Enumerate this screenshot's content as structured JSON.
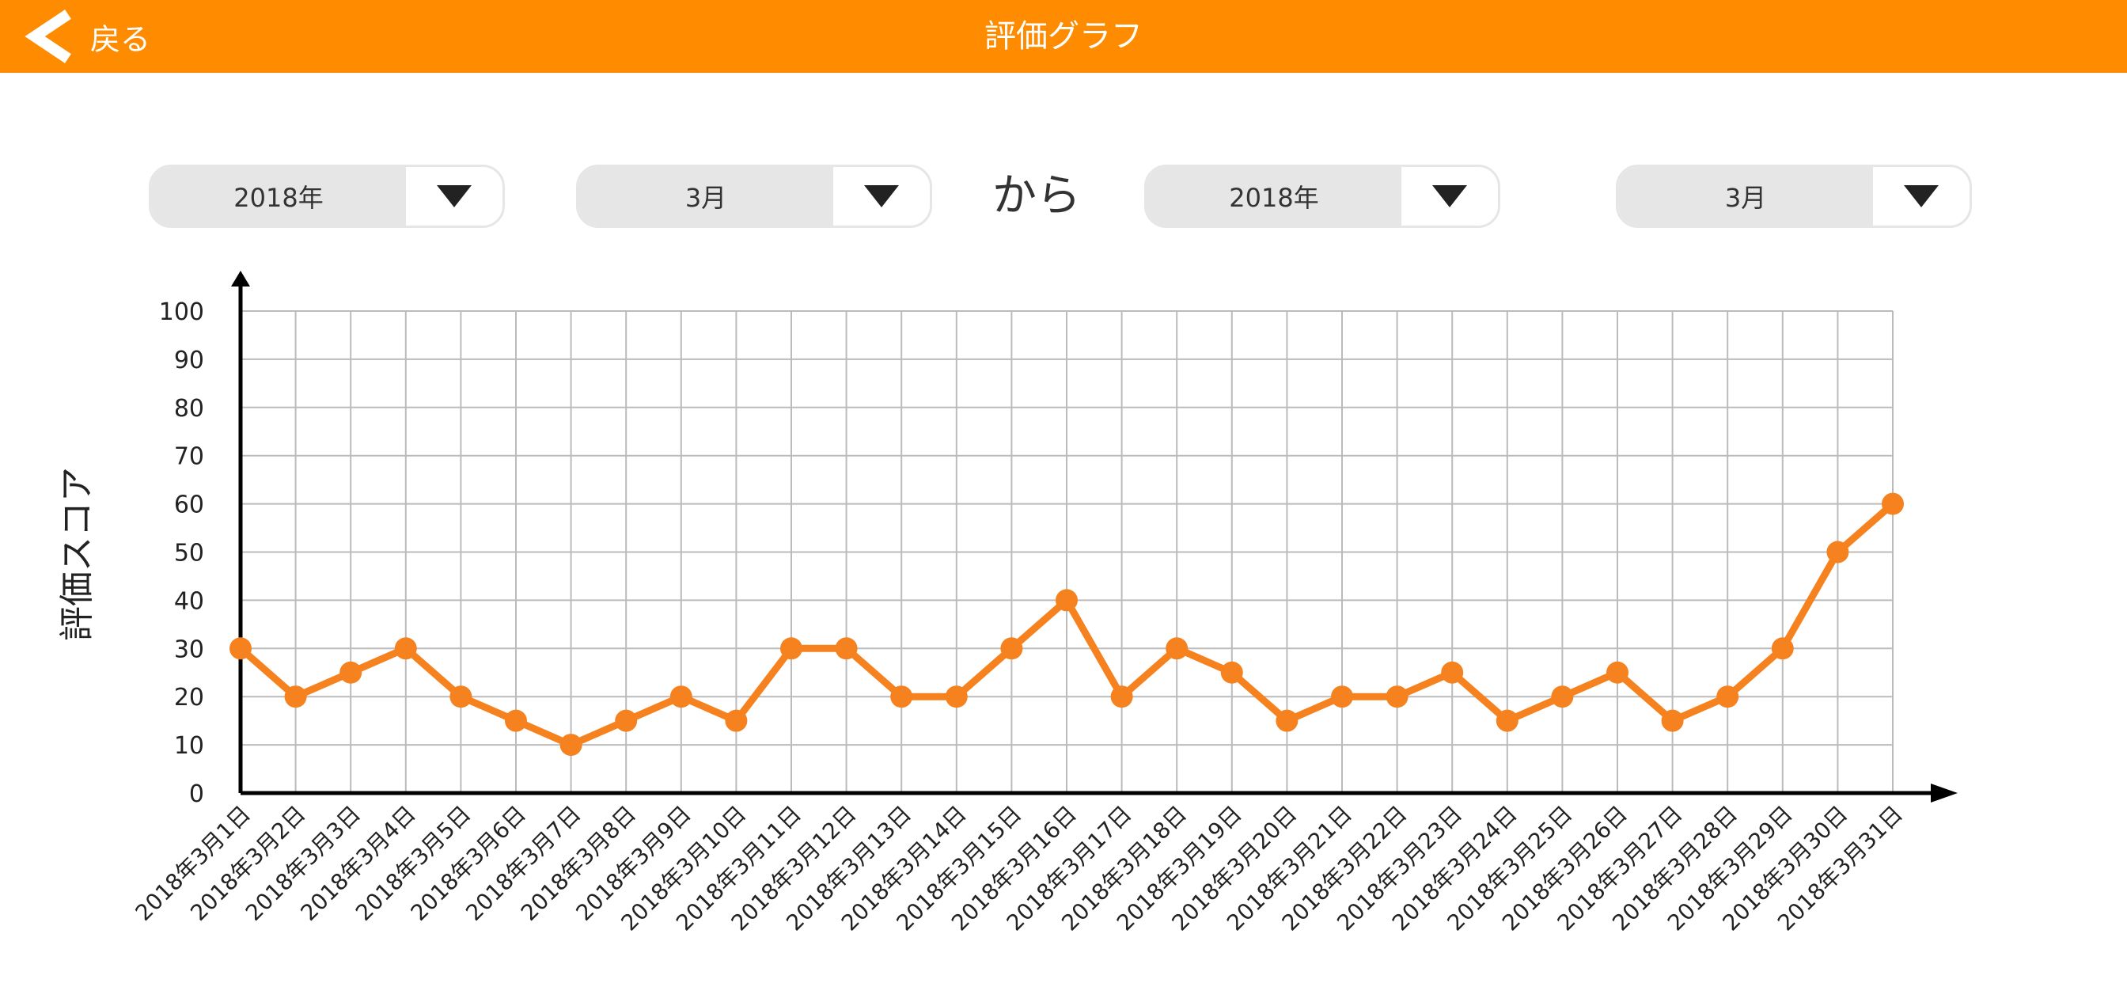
{
  "header": {
    "back_label": "戻る",
    "title": "評価グラフ"
  },
  "filters": {
    "from_year": "2018年",
    "from_month": "3月",
    "connector": "から",
    "to_year": "2018年",
    "to_month": "3月"
  },
  "colors": {
    "header_bg": "#ff8c00",
    "line": "#f5821f",
    "grid": "#bbbbbb"
  },
  "icons": {
    "back": "chevron-left-icon",
    "dropdown": "triangle-down-icon"
  },
  "chart_data": {
    "type": "line",
    "ylabel": "評価スコア",
    "ylim": [
      0,
      100
    ],
    "yticks": [
      "0",
      "10",
      "20",
      "30",
      "40",
      "50",
      "60",
      "70",
      "80",
      "90",
      "100"
    ],
    "grid": true,
    "categories": [
      "2018年3月1日",
      "2018年3月2日",
      "2018年3月3日",
      "2018年3月4日",
      "2018年3月5日",
      "2018年3月6日",
      "2018年3月7日",
      "2018年3月8日",
      "2018年3月9日",
      "2018年3月10日",
      "2018年3月11日",
      "2018年3月12日",
      "2018年3月13日",
      "2018年3月14日",
      "2018年3月15日",
      "2018年3月16日",
      "2018年3月17日",
      "2018年3月18日",
      "2018年3月19日",
      "2018年3月20日",
      "2018年3月21日",
      "2018年3月22日",
      "2018年3月23日",
      "2018年3月24日",
      "2018年3月25日",
      "2018年3月26日",
      "2018年3月27日",
      "2018年3月28日",
      "2018年3月29日",
      "2018年3月30日",
      "2018年3月31日"
    ],
    "values": [
      30,
      20,
      25,
      30,
      20,
      15,
      10,
      15,
      20,
      15,
      30,
      30,
      20,
      20,
      30,
      40,
      20,
      30,
      25,
      15,
      20,
      20,
      25,
      15,
      20,
      25,
      15,
      20,
      30,
      50,
      60
    ]
  }
}
